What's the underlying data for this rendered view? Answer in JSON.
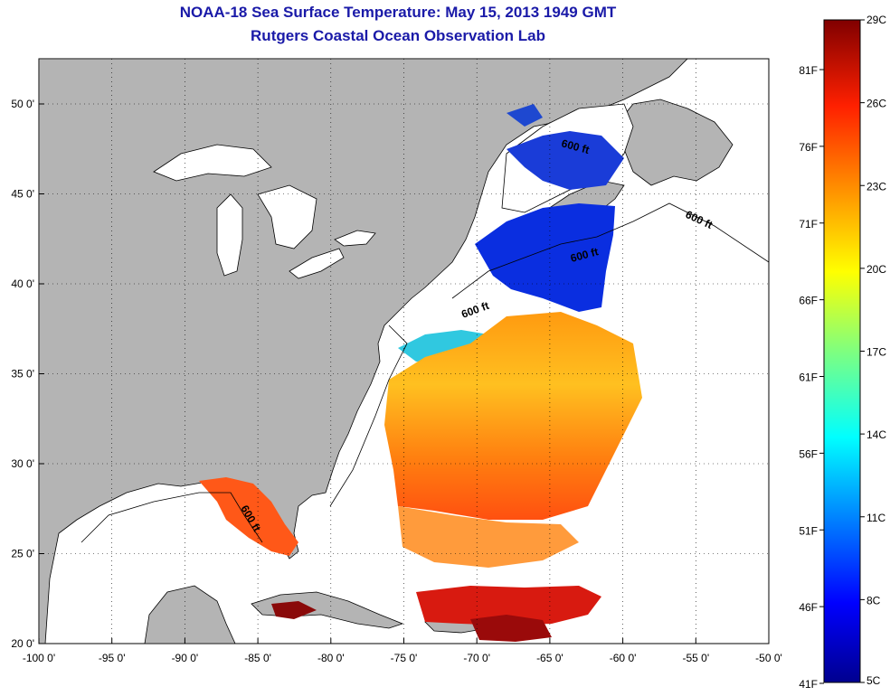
{
  "title": "NOAA-18 Sea Surface Temperature:  May 15, 2013 1949 GMT",
  "subtitle": "Rutgers Coastal Ocean Observation Lab",
  "map": {
    "lon_ticks": [
      "-100 0'",
      "-95 0'",
      "-90 0'",
      "-85 0'",
      "-80 0'",
      "-75 0'",
      "-70 0'",
      "-65 0'",
      "-60 0'",
      "-55 0'",
      "-50 0'"
    ],
    "lat_ticks": [
      "50 0'",
      "45 0'",
      "40 0'",
      "35 0'",
      "30 0'",
      "25 0'",
      "20 0'"
    ],
    "contour_label": "600 ft",
    "land_color": "#b4b4b4",
    "no_data_color": "#ffffff"
  },
  "colorbar": {
    "celsius": [
      "29C",
      "26C",
      "23C",
      "20C",
      "17C",
      "14C",
      "11C",
      "8C",
      "5C"
    ],
    "fahrenheit": [
      "81F",
      "76F",
      "71F",
      "66F",
      "61F",
      "56F",
      "51F",
      "46F",
      "41F"
    ]
  }
}
